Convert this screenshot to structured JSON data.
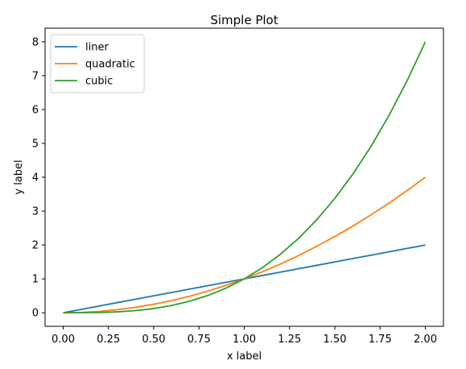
{
  "chart_data": {
    "type": "line",
    "title": "Simple Plot",
    "xlabel": "x label",
    "ylabel": "y label",
    "xlim": [
      -0.1,
      2.1
    ],
    "ylim": [
      -0.4,
      8.4
    ],
    "xticks": [
      0.0,
      0.25,
      0.5,
      0.75,
      1.0,
      1.25,
      1.5,
      1.75,
      2.0
    ],
    "xtick_labels": [
      "0.00",
      "0.25",
      "0.50",
      "0.75",
      "1.00",
      "1.25",
      "1.50",
      "1.75",
      "2.00"
    ],
    "yticks": [
      0,
      1,
      2,
      3,
      4,
      5,
      6,
      7,
      8
    ],
    "ytick_labels": [
      "0",
      "1",
      "2",
      "3",
      "4",
      "5",
      "6",
      "7",
      "8"
    ],
    "grid": false,
    "legend_position": "top-left",
    "x": [
      0.0,
      0.1,
      0.2,
      0.3,
      0.4,
      0.5,
      0.6,
      0.7,
      0.8,
      0.9,
      1.0,
      1.1,
      1.2,
      1.3,
      1.4,
      1.5,
      1.6,
      1.7,
      1.8,
      1.9,
      2.0
    ],
    "series": [
      {
        "name": "liner",
        "color": "#1f77b4",
        "values": [
          0.0,
          0.1,
          0.2,
          0.3,
          0.4,
          0.5,
          0.6,
          0.7,
          0.8,
          0.9,
          1.0,
          1.1,
          1.2,
          1.3,
          1.4,
          1.5,
          1.6,
          1.7,
          1.8,
          1.9,
          2.0
        ]
      },
      {
        "name": "quadratic",
        "color": "#ff7f0e",
        "values": [
          0.0,
          0.01,
          0.04,
          0.09,
          0.16,
          0.25,
          0.36,
          0.49,
          0.64,
          0.81,
          1.0,
          1.21,
          1.44,
          1.69,
          1.96,
          2.25,
          2.56,
          2.89,
          3.24,
          3.61,
          4.0
        ]
      },
      {
        "name": "cubic",
        "color": "#2ca02c",
        "values": [
          0.0,
          0.001,
          0.008,
          0.027,
          0.064,
          0.125,
          0.216,
          0.343,
          0.512,
          0.729,
          1.0,
          1.331,
          1.728,
          2.197,
          2.744,
          3.375,
          4.096,
          4.913,
          5.832,
          6.859,
          8.0
        ]
      }
    ]
  }
}
